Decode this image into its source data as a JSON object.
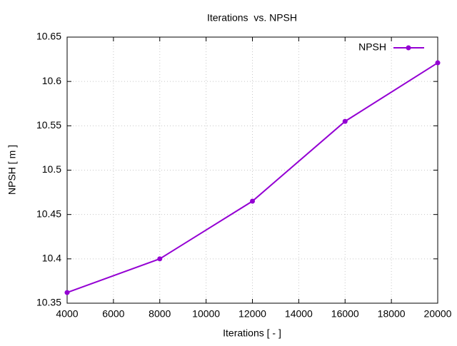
{
  "chart_data": {
    "type": "line",
    "title": "Iterations  vs. NPSH",
    "x_label": "Iterations [ - ]",
    "y_label": "NPSH [ m ]",
    "x": [
      4000,
      8000,
      12000,
      16000,
      20000
    ],
    "series": [
      {
        "name": "NPSH",
        "color": "#9400d3",
        "values": [
          10.362,
          10.4,
          10.465,
          10.555,
          10.621
        ]
      }
    ],
    "xlim": [
      4000,
      20000
    ],
    "xticks": [
      4000,
      6000,
      8000,
      10000,
      12000,
      14000,
      16000,
      18000,
      20000
    ],
    "ylim": [
      10.35,
      10.65
    ],
    "yticks": [
      10.35,
      10.4,
      10.45,
      10.5,
      10.55,
      10.6,
      10.65
    ],
    "grid": true,
    "legend": "top-right"
  }
}
